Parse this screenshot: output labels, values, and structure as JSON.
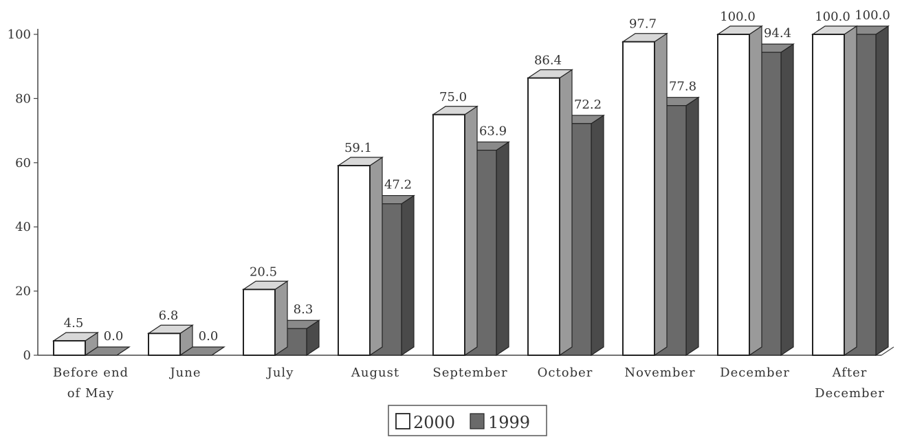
{
  "chart_data": {
    "type": "bar",
    "categories": [
      [
        "Before end",
        "of May"
      ],
      [
        "June"
      ],
      [
        "July"
      ],
      [
        "August"
      ],
      [
        "September"
      ],
      [
        "October"
      ],
      [
        "November"
      ],
      [
        "December"
      ],
      [
        "After",
        "December"
      ]
    ],
    "series": [
      {
        "name": "2000",
        "values": [
          4.5,
          6.8,
          20.5,
          59.1,
          75.0,
          86.4,
          97.7,
          100.0,
          100.0
        ],
        "labels": [
          "4.5",
          "6.8",
          "20.5",
          "59.1",
          "75.0",
          "86.4",
          "97.7",
          "100.0",
          "100.0"
        ],
        "color": "#ffffff"
      },
      {
        "name": "1999",
        "values": [
          0.0,
          0.0,
          8.3,
          47.2,
          63.9,
          72.2,
          77.8,
          94.4,
          100.0
        ],
        "labels": [
          "0.0",
          "0.0",
          "8.3",
          "47.2",
          "63.9",
          "72.2",
          "77.8",
          "94.4",
          "100.0"
        ],
        "color": "#6a6a6a"
      }
    ],
    "y_ticks": [
      "0",
      "20",
      "40",
      "60",
      "80",
      "100"
    ],
    "ylim": [
      0,
      100
    ],
    "grid": false,
    "legend_position": "bottom-center",
    "style": "3d-clustered-bar"
  }
}
